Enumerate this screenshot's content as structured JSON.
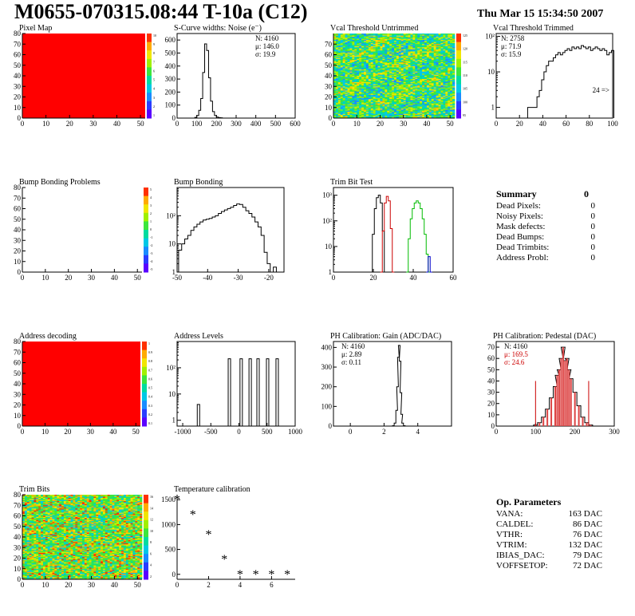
{
  "header": {
    "title": "M0655-070315.08:44 T-10a (C12)",
    "date": "Thu Mar 15 15:34:50 2007"
  },
  "summary": {
    "title": "Summary",
    "value": "0",
    "rows": [
      {
        "label": "Dead Pixels:",
        "value": "0"
      },
      {
        "label": "Noisy Pixels:",
        "value": "0"
      },
      {
        "label": "Mask defects:",
        "value": "0"
      },
      {
        "label": "Dead Bumps:",
        "value": "0"
      },
      {
        "label": "Dead Trimbits:",
        "value": "0"
      },
      {
        "label": "Address Probl:",
        "value": "0"
      }
    ]
  },
  "op_params": {
    "title": "Op. Parameters",
    "rows": [
      {
        "label": "VANA:",
        "value": "163 DAC"
      },
      {
        "label": "CALDEL:",
        "value": "86 DAC"
      },
      {
        "label": "VTHR:",
        "value": "76 DAC"
      },
      {
        "label": "VTRIM:",
        "value": "132 DAC"
      },
      {
        "label": "IBIAS_DAC:",
        "value": "79 DAC"
      },
      {
        "label": "VOFFSETOP:",
        "value": "72 DAC"
      }
    ]
  },
  "chart_data": [
    {
      "id": "pixelmap",
      "type": "heatmap",
      "title": "Pixel Map",
      "fill": "#ff0000",
      "xlim": [
        0,
        52
      ],
      "ylim": [
        0,
        80
      ],
      "xticks": [
        0,
        10,
        20,
        30,
        40,
        50
      ],
      "yticks": [
        0,
        10,
        20,
        30,
        40,
        50,
        60,
        70,
        80
      ],
      "zticks": [
        "10",
        "9",
        "8",
        "7",
        "6",
        "5",
        "4",
        "3",
        "2",
        "1"
      ]
    },
    {
      "id": "scurve",
      "type": "line",
      "title": "S-Curve widths: Noise (e⁻)",
      "xlim": [
        0,
        600
      ],
      "ylim": [
        0,
        650
      ],
      "xticks": [
        0,
        100,
        200,
        300,
        400,
        500,
        600
      ],
      "yticks": [
        0,
        100,
        200,
        300,
        400,
        500,
        600
      ],
      "stats": [
        "N: 4160",
        "μ: 146.0",
        "σ: 19.9"
      ],
      "x": [
        95,
        105,
        115,
        125,
        135,
        145,
        155,
        165,
        175,
        185,
        195,
        205,
        215,
        225
      ],
      "values": [
        5,
        20,
        60,
        150,
        350,
        570,
        520,
        310,
        130,
        50,
        20,
        8,
        4,
        2
      ]
    },
    {
      "id": "vcal_untrimmed",
      "type": "heatmap",
      "title": "Vcal Threshold Untrimmed",
      "xlim": [
        0,
        52
      ],
      "ylim": [
        0,
        80
      ],
      "xticks": [
        0,
        10,
        20,
        30,
        40,
        50
      ],
      "yticks": [
        0,
        10,
        20,
        30,
        40,
        50,
        60,
        70
      ],
      "zticks": [
        "125",
        "120",
        "115",
        "110",
        "105",
        "100",
        "95"
      ]
    },
    {
      "id": "vcal_trimmed",
      "type": "line",
      "title": "Vcal Threshold Trimmed",
      "log": true,
      "xlim": [
        0,
        100
      ],
      "ylim": [
        0.5,
        120
      ],
      "xticks": [
        0,
        20,
        40,
        60,
        80,
        100
      ],
      "yticks_log": [
        1,
        10,
        100
      ],
      "stats": [
        "N: 2758",
        "μ: 71.9",
        "σ: 15.9"
      ],
      "overflow": "24 =>",
      "x": [
        28,
        30,
        32,
        34,
        36,
        38,
        40,
        42,
        44,
        46,
        48,
        50,
        52,
        54,
        56,
        58,
        60,
        62,
        64,
        66,
        68,
        70,
        72,
        74,
        76,
        78,
        80,
        82,
        84,
        86,
        88,
        90,
        92,
        94,
        96,
        98,
        100
      ],
      "values": [
        1,
        1,
        1,
        1,
        2,
        3,
        6,
        10,
        15,
        20,
        20,
        25,
        30,
        35,
        30,
        35,
        40,
        45,
        40,
        50,
        45,
        50,
        45,
        55,
        50,
        45,
        50,
        40,
        45,
        50,
        45,
        40,
        45,
        40,
        30,
        35,
        40
      ]
    },
    {
      "id": "bump_problems",
      "type": "heatmap",
      "title": "Bump Bonding Problems",
      "fill": "#ffffff",
      "xlim": [
        0,
        52
      ],
      "ylim": [
        0,
        80
      ],
      "xticks": [
        0,
        10,
        20,
        30,
        40,
        50
      ],
      "yticks": [
        0,
        10,
        20,
        30,
        40,
        50,
        60,
        70,
        80
      ],
      "zticks": [
        "5",
        "4",
        "3",
        "2",
        "1",
        "0",
        "-1",
        "-2",
        "-3",
        "-4",
        "-5"
      ]
    },
    {
      "id": "bump_bonding",
      "type": "line",
      "title": "Bump Bonding",
      "log": true,
      "xlim": [
        -50,
        -15
      ],
      "ylim": [
        1,
        1000
      ],
      "xticks": [
        -50,
        -40,
        -30,
        -20
      ],
      "yticks_log": [
        1,
        10,
        100
      ],
      "x": [
        -49,
        -48,
        -47,
        -46,
        -45,
        -44,
        -43,
        -42,
        -41,
        -40,
        -39,
        -38,
        -37,
        -36,
        -35,
        -34,
        -33,
        -32,
        -31,
        -30,
        -29,
        -28,
        -27,
        -26,
        -25,
        -24,
        -23,
        -22,
        -21,
        -20,
        -19,
        -18,
        -17
      ],
      "values": [
        6,
        10,
        15,
        20,
        30,
        40,
        50,
        60,
        70,
        75,
        80,
        90,
        100,
        120,
        140,
        160,
        180,
        200,
        230,
        260,
        250,
        200,
        150,
        120,
        90,
        60,
        40,
        20,
        5,
        2,
        1,
        1.5,
        1
      ]
    },
    {
      "id": "trim_bit_test",
      "type": "line",
      "title": "Trim Bit Test",
      "log": true,
      "xlim": [
        0,
        60
      ],
      "ylim": [
        1,
        2000
      ],
      "xticks": [
        0,
        20,
        40,
        60
      ],
      "yticks_log": [
        1,
        10,
        100,
        1000
      ],
      "series": [
        {
          "color": "#000000",
          "x": [
            19,
            20,
            21,
            22,
            23,
            24,
            25,
            26
          ],
          "values": [
            1,
            30,
            300,
            800,
            1000,
            500,
            40,
            1
          ]
        },
        {
          "color": "#cc0000",
          "x": [
            24,
            25,
            26,
            27,
            28,
            29,
            30
          ],
          "values": [
            1,
            40,
            500,
            900,
            600,
            50,
            1
          ]
        },
        {
          "color": "#00bb00",
          "x": [
            37,
            38,
            39,
            40,
            41,
            42,
            43,
            44,
            45,
            46,
            47,
            48
          ],
          "values": [
            1,
            20,
            120,
            300,
            500,
            600,
            500,
            300,
            120,
            30,
            5,
            1
          ]
        },
        {
          "color": "#0000cc",
          "x": [
            47,
            48,
            49
          ],
          "values": [
            1,
            4,
            1
          ]
        }
      ]
    },
    {
      "id": "address_decoding",
      "type": "heatmap",
      "title": "Address decoding",
      "fill": "#ff0000",
      "xlim": [
        0,
        52
      ],
      "ylim": [
        0,
        80
      ],
      "xticks": [
        0,
        10,
        20,
        30,
        40,
        50
      ],
      "yticks": [
        0,
        10,
        20,
        30,
        40,
        50,
        60,
        70,
        80
      ],
      "zticks": [
        "1",
        "0.9",
        "0.8",
        "0.7",
        "0.6",
        "0.5",
        "0.4",
        "0.3",
        "0.2",
        "0.1"
      ]
    },
    {
      "id": "address_levels",
      "type": "bar",
      "title": "Address Levels",
      "log": true,
      "xlim": [
        -1100,
        1000
      ],
      "ylim": [
        0.6,
        1000
      ],
      "xticks": [
        -1000,
        -500,
        0,
        500,
        1000
      ],
      "yticks_log": [
        1,
        10,
        100
      ],
      "peaks": [
        -720,
        -170,
        40,
        200,
        340,
        510,
        680
      ],
      "values": [
        4,
        220,
        220,
        220,
        220,
        220,
        220
      ]
    },
    {
      "id": "ph_gain",
      "type": "line",
      "title": "PH Calibration: Gain (ADC/DAC)",
      "xlim": [
        -1,
        6
      ],
      "ylim": [
        0,
        430
      ],
      "xticks": [
        0,
        2,
        4
      ],
      "yticks": [
        0,
        100,
        200,
        300,
        400
      ],
      "stats": [
        "N: 4160",
        "μ: 2.89",
        "σ: 0.11"
      ],
      "x": [
        2.55,
        2.65,
        2.75,
        2.8,
        2.85,
        2.9,
        2.95,
        3.0,
        3.05,
        3.1,
        3.2
      ],
      "values": [
        2,
        15,
        80,
        200,
        350,
        410,
        330,
        170,
        60,
        15,
        2
      ]
    },
    {
      "id": "ph_pedestal",
      "type": "line",
      "title": "PH Calibration: Pedestal (DAC)",
      "xlim": [
        0,
        300
      ],
      "ylim": [
        0,
        75
      ],
      "xticks": [
        0,
        100,
        200,
        300
      ],
      "yticks": [
        0,
        10,
        20,
        30,
        40,
        50,
        60,
        70
      ],
      "stats": [
        "N: 4160"
      ],
      "stats_red": [
        "μ: 169.5",
        "σ: 24.6"
      ],
      "x": [
        100,
        110,
        120,
        130,
        140,
        150,
        155,
        160,
        165,
        170,
        175,
        180,
        185,
        190,
        200,
        210,
        220,
        230,
        240
      ],
      "values": [
        1,
        3,
        8,
        15,
        25,
        35,
        45,
        50,
        60,
        70,
        58,
        60,
        50,
        42,
        30,
        18,
        8,
        3,
        1
      ]
    },
    {
      "id": "trim_bits",
      "type": "heatmap",
      "title": "Trim Bits",
      "xlim": [
        0,
        52
      ],
      "ylim": [
        0,
        80
      ],
      "xticks": [
        0,
        10,
        20,
        30,
        40,
        50
      ],
      "yticks": [
        0,
        10,
        20,
        30,
        40,
        50,
        60,
        70,
        80
      ],
      "zticks": [
        "16",
        "14",
        "12",
        "10",
        "8",
        "6",
        "4",
        "2"
      ]
    },
    {
      "id": "temperature",
      "type": "scatter",
      "title": "Temperature calibration",
      "xlim": [
        0,
        7.5
      ],
      "ylim": [
        -100,
        1600
      ],
      "xticks": [
        0,
        2,
        4,
        6
      ],
      "yticks": [
        0,
        500,
        1000,
        1500
      ],
      "x": [
        0,
        1,
        2,
        3,
        4,
        5,
        6,
        7
      ],
      "values": [
        1500,
        1200,
        800,
        300,
        0,
        0,
        0,
        0
      ]
    }
  ]
}
